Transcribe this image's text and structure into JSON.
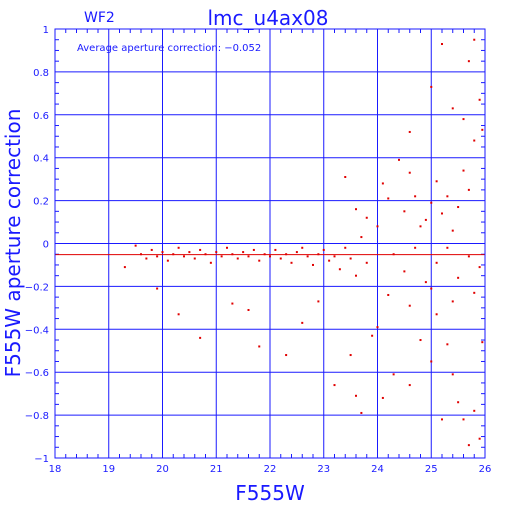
{
  "chart_data": {
    "type": "scatter",
    "title": "lmc_u4ax08",
    "chip_label": "WF2",
    "annotation": "Average aperture correction: −0.052",
    "xlabel": "F555W",
    "ylabel": "F555W aperture correction",
    "xlim": [
      18,
      26
    ],
    "ylim": [
      -1,
      1
    ],
    "x_ticks": [
      18,
      19,
      20,
      21,
      22,
      23,
      24,
      25,
      26
    ],
    "y_ticks": [
      -1,
      -0.8,
      -0.6,
      -0.4,
      -0.2,
      0,
      0.2,
      0.4,
      0.6,
      0.8,
      1
    ],
    "x_tick_labels": [
      "18",
      "19",
      "20",
      "21",
      "22",
      "23",
      "24",
      "25",
      "26"
    ],
    "y_tick_labels": [
      "−1",
      "−0.8",
      "−0.6",
      "−0.4",
      "−0.2",
      "0",
      "0.2",
      "0.4",
      "0.6",
      "0.8",
      "1"
    ],
    "grid": true,
    "average_line": -0.052,
    "zero_line": 0,
    "colors": {
      "axis": "#1a1aff",
      "points": "#e00000",
      "average_line": "#e00000"
    },
    "points": [
      [
        19.3,
        -0.11
      ],
      [
        19.5,
        -0.01
      ],
      [
        19.6,
        -0.05
      ],
      [
        19.7,
        -0.07
      ],
      [
        19.8,
        -0.03
      ],
      [
        19.9,
        -0.06
      ],
      [
        20.0,
        -0.04
      ],
      [
        20.1,
        -0.08
      ],
      [
        20.2,
        -0.05
      ],
      [
        20.3,
        -0.02
      ],
      [
        20.4,
        -0.06
      ],
      [
        20.5,
        -0.04
      ],
      [
        20.6,
        -0.07
      ],
      [
        20.7,
        -0.03
      ],
      [
        20.8,
        -0.05
      ],
      [
        20.9,
        -0.09
      ],
      [
        21.0,
        -0.04
      ],
      [
        21.1,
        -0.06
      ],
      [
        21.2,
        -0.02
      ],
      [
        21.3,
        -0.05
      ],
      [
        21.4,
        -0.07
      ],
      [
        21.5,
        -0.04
      ],
      [
        21.6,
        -0.06
      ],
      [
        21.7,
        -0.03
      ],
      [
        21.8,
        -0.08
      ],
      [
        21.9,
        -0.05
      ],
      [
        22.0,
        -0.06
      ],
      [
        22.1,
        -0.03
      ],
      [
        22.2,
        -0.07
      ],
      [
        22.3,
        -0.05
      ],
      [
        22.4,
        -0.09
      ],
      [
        22.5,
        -0.04
      ],
      [
        22.6,
        -0.02
      ],
      [
        22.7,
        -0.06
      ],
      [
        22.8,
        -0.1
      ],
      [
        22.9,
        -0.05
      ],
      [
        23.0,
        -0.03
      ],
      [
        23.1,
        -0.08
      ],
      [
        23.2,
        -0.06
      ],
      [
        23.3,
        -0.12
      ],
      [
        23.4,
        -0.02
      ],
      [
        23.5,
        -0.07
      ],
      [
        23.6,
        -0.15
      ],
      [
        23.7,
        0.03
      ],
      [
        23.8,
        -0.09
      ],
      [
        19.9,
        -0.21
      ],
      [
        20.3,
        -0.33
      ],
      [
        20.7,
        -0.44
      ],
      [
        21.3,
        -0.28
      ],
      [
        21.6,
        -0.31
      ],
      [
        21.8,
        -0.48
      ],
      [
        22.3,
        -0.52
      ],
      [
        22.6,
        -0.37
      ],
      [
        22.9,
        -0.27
      ],
      [
        23.2,
        -0.66
      ],
      [
        23.5,
        -0.52
      ],
      [
        23.6,
        -0.71
      ],
      [
        23.7,
        -0.79
      ],
      [
        23.9,
        -0.43
      ],
      [
        24.0,
        -0.39
      ],
      [
        24.1,
        -0.72
      ],
      [
        24.3,
        -0.61
      ],
      [
        24.6,
        -0.66
      ],
      [
        24.8,
        -0.45
      ],
      [
        25.0,
        -0.55
      ],
      [
        25.1,
        -0.33
      ],
      [
        25.2,
        -0.82
      ],
      [
        25.3,
        -0.47
      ],
      [
        25.4,
        -0.61
      ],
      [
        25.5,
        -0.74
      ],
      [
        25.6,
        -0.82
      ],
      [
        25.7,
        -0.94
      ],
      [
        25.8,
        -0.78
      ],
      [
        25.9,
        -0.91
      ],
      [
        25.95,
        -0.46
      ],
      [
        23.4,
        0.31
      ],
      [
        23.6,
        0.16
      ],
      [
        23.8,
        0.12
      ],
      [
        24.0,
        0.08
      ],
      [
        24.1,
        0.28
      ],
      [
        24.2,
        0.21
      ],
      [
        24.4,
        0.39
      ],
      [
        24.5,
        0.15
      ],
      [
        24.6,
        0.33
      ],
      [
        24.7,
        0.22
      ],
      [
        24.8,
        0.08
      ],
      [
        24.9,
        0.11
      ],
      [
        25.0,
        0.19
      ],
      [
        25.1,
        0.29
      ],
      [
        25.2,
        0.14
      ],
      [
        25.3,
        0.22
      ],
      [
        25.4,
        0.06
      ],
      [
        25.5,
        0.17
      ],
      [
        25.6,
        0.34
      ],
      [
        25.7,
        0.25
      ],
      [
        25.8,
        0.48
      ],
      [
        25.9,
        0.67
      ],
      [
        25.95,
        0.53
      ],
      [
        25.6,
        0.58
      ],
      [
        25.7,
        0.85
      ],
      [
        25.8,
        0.95
      ],
      [
        25.0,
        0.73
      ],
      [
        25.2,
        0.93
      ],
      [
        24.6,
        0.52
      ],
      [
        25.4,
        0.63
      ],
      [
        24.3,
        -0.05
      ],
      [
        24.5,
        -0.13
      ],
      [
        24.7,
        -0.02
      ],
      [
        24.9,
        -0.18
      ],
      [
        25.1,
        -0.09
      ],
      [
        25.3,
        -0.02
      ],
      [
        25.5,
        -0.16
      ],
      [
        25.7,
        -0.06
      ],
      [
        25.9,
        -0.11
      ],
      [
        24.2,
        -0.24
      ],
      [
        24.6,
        -0.29
      ],
      [
        25.0,
        -0.21
      ],
      [
        25.4,
        -0.27
      ],
      [
        25.8,
        -0.23
      ]
    ]
  }
}
